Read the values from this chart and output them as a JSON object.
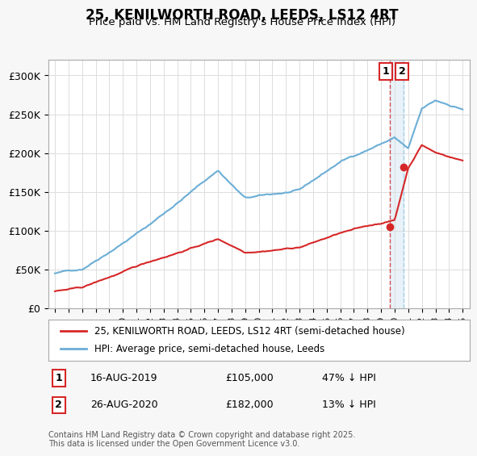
{
  "title": "25, KENILWORTH ROAD, LEEDS, LS12 4RT",
  "subtitle": "Price paid vs. HM Land Registry's House Price Index (HPI)",
  "ylabel": "",
  "ylim": [
    0,
    320000
  ],
  "yticks": [
    0,
    50000,
    100000,
    150000,
    200000,
    250000,
    300000
  ],
  "ytick_labels": [
    "£0",
    "£50K",
    "£100K",
    "£150K",
    "£200K",
    "£250K",
    "£300K"
  ],
  "hpi_color": "#6baed6",
  "price_color": "#d62728",
  "marker1_date_idx": 24,
  "marker2_date_idx": 25,
  "marker1_label": "1",
  "marker2_label": "2",
  "marker1_info": "16-AUG-2019    £105,000    47% ↓ HPI",
  "marker2_info": "26-AUG-2020    £182,000    13% ↓ HPI",
  "legend_line1": "25, KENILWORTH ROAD, LEEDS, LS12 4RT (semi-detached house)",
  "legend_line2": "HPI: Average price, semi-detached house, Leeds",
  "footer": "Contains HM Land Registry data © Crown copyright and database right 2025.\nThis data is licensed under the Open Government Licence v3.0.",
  "bg_color": "#f7f7f7",
  "plot_bg_color": "#ffffff",
  "grid_color": "#dddddd"
}
